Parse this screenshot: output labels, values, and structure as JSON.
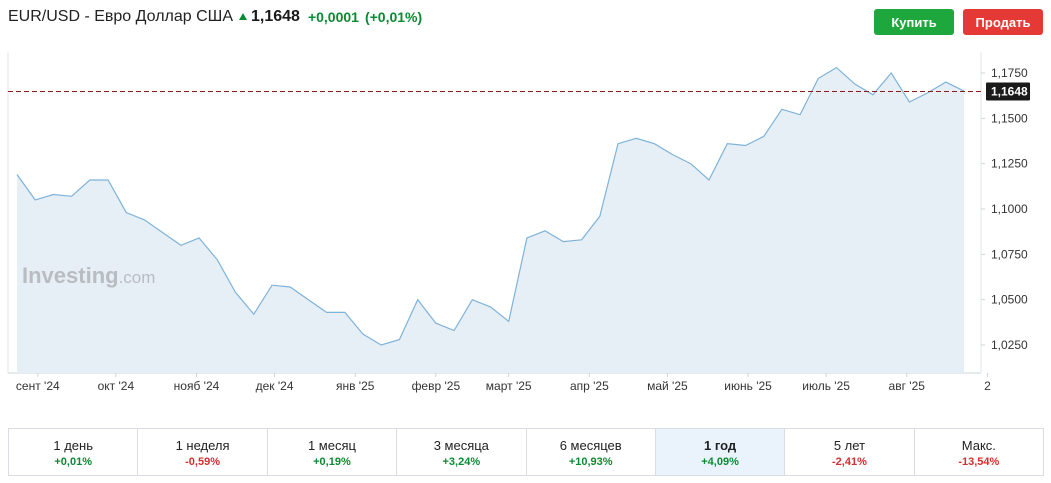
{
  "header": {
    "instrument": "EUR/USD - Евро Доллар США",
    "price": "1,1648",
    "change": "+0,0001",
    "change_pct": "(+0,01%)",
    "direction_icon": "arrow-up-icon",
    "up_color": "#0a8a32"
  },
  "actions": {
    "buy_label": "Купить",
    "sell_label": "Продать",
    "buy_color": "#1ea73c",
    "sell_color": "#e53935"
  },
  "watermark": {
    "brand": "Investing",
    "suffix": ".com"
  },
  "chart_data": {
    "type": "area",
    "x_ticks": [
      {
        "label": "сент '24",
        "date": "2024-09-01"
      },
      {
        "label": "окт '24",
        "date": "2024-10-01"
      },
      {
        "label": "нояб '24",
        "date": "2024-11-01"
      },
      {
        "label": "дек '24",
        "date": "2024-12-01"
      },
      {
        "label": "янв '25",
        "date": "2025-01-01"
      },
      {
        "label": "февр '25",
        "date": "2025-02-01"
      },
      {
        "label": "март '25",
        "date": "2025-03-01"
      },
      {
        "label": "апр '25",
        "date": "2025-04-01"
      },
      {
        "label": "май '25",
        "date": "2025-05-01"
      },
      {
        "label": "июнь '25",
        "date": "2025-06-01"
      },
      {
        "label": "июль '25",
        "date": "2025-07-01"
      },
      {
        "label": "авг '25",
        "date": "2025-08-01"
      },
      {
        "label": "2",
        "date": "2025-09-01"
      }
    ],
    "y_ticks": [
      "1,0250",
      "1,0500",
      "1,0750",
      "1,1000",
      "1,1250",
      "1,1500",
      "1,1750"
    ],
    "y_tick_values": [
      1.025,
      1.05,
      1.075,
      1.1,
      1.125,
      1.15,
      1.175
    ],
    "ylim": [
      1.01,
      1.19
    ],
    "current_value": 1.1648,
    "current_label": "1,1648",
    "series": [
      {
        "line_color": "#7fb3d9",
        "fill_color": "#e6eff6",
        "points": [
          [
            "2024-08-24",
            1.119
          ],
          [
            "2024-08-31",
            1.105
          ],
          [
            "2024-09-07",
            1.108
          ],
          [
            "2024-09-14",
            1.107
          ],
          [
            "2024-09-21",
            1.116
          ],
          [
            "2024-09-28",
            1.116
          ],
          [
            "2024-10-05",
            1.098
          ],
          [
            "2024-10-12",
            1.094
          ],
          [
            "2024-10-19",
            1.087
          ],
          [
            "2024-10-26",
            1.08
          ],
          [
            "2024-11-02",
            1.084
          ],
          [
            "2024-11-09",
            1.072
          ],
          [
            "2024-11-16",
            1.054
          ],
          [
            "2024-11-23",
            1.042
          ],
          [
            "2024-11-30",
            1.058
          ],
          [
            "2024-12-07",
            1.057
          ],
          [
            "2024-12-14",
            1.05
          ],
          [
            "2024-12-21",
            1.043
          ],
          [
            "2024-12-28",
            1.043
          ],
          [
            "2025-01-04",
            1.031
          ],
          [
            "2025-01-11",
            1.025
          ],
          [
            "2025-01-18",
            1.028
          ],
          [
            "2025-01-25",
            1.05
          ],
          [
            "2025-02-01",
            1.037
          ],
          [
            "2025-02-08",
            1.033
          ],
          [
            "2025-02-15",
            1.05
          ],
          [
            "2025-02-22",
            1.046
          ],
          [
            "2025-03-01",
            1.038
          ],
          [
            "2025-03-08",
            1.084
          ],
          [
            "2025-03-15",
            1.088
          ],
          [
            "2025-03-22",
            1.082
          ],
          [
            "2025-03-29",
            1.083
          ],
          [
            "2025-04-05",
            1.096
          ],
          [
            "2025-04-12",
            1.136
          ],
          [
            "2025-04-19",
            1.139
          ],
          [
            "2025-04-26",
            1.136
          ],
          [
            "2025-05-03",
            1.13
          ],
          [
            "2025-05-10",
            1.125
          ],
          [
            "2025-05-17",
            1.116
          ],
          [
            "2025-05-24",
            1.136
          ],
          [
            "2025-05-31",
            1.135
          ],
          [
            "2025-06-07",
            1.14
          ],
          [
            "2025-06-14",
            1.155
          ],
          [
            "2025-06-21",
            1.152
          ],
          [
            "2025-06-28",
            1.172
          ],
          [
            "2025-07-05",
            1.178
          ],
          [
            "2025-07-12",
            1.169
          ],
          [
            "2025-07-19",
            1.163
          ],
          [
            "2025-07-26",
            1.175
          ],
          [
            "2025-08-02",
            1.159
          ],
          [
            "2025-08-09",
            1.164
          ],
          [
            "2025-08-16",
            1.17
          ],
          [
            "2025-08-23",
            1.165
          ]
        ]
      }
    ]
  },
  "periods": [
    {
      "label": "1 день",
      "value": "+0,01%",
      "sign": "pos",
      "active": false
    },
    {
      "label": "1 неделя",
      "value": "-0,59%",
      "sign": "neg",
      "active": false
    },
    {
      "label": "1 месяц",
      "value": "+0,19%",
      "sign": "pos",
      "active": false
    },
    {
      "label": "3 месяца",
      "value": "+3,24%",
      "sign": "pos",
      "active": false
    },
    {
      "label": "6 месяцев",
      "value": "+10,93%",
      "sign": "pos",
      "active": false
    },
    {
      "label": "1 год",
      "value": "+4,09%",
      "sign": "pos",
      "active": true
    },
    {
      "label": "5 лет",
      "value": "-2,41%",
      "sign": "neg",
      "active": false
    },
    {
      "label": "Макс.",
      "value": "-13,54%",
      "sign": "neg",
      "active": false
    }
  ]
}
